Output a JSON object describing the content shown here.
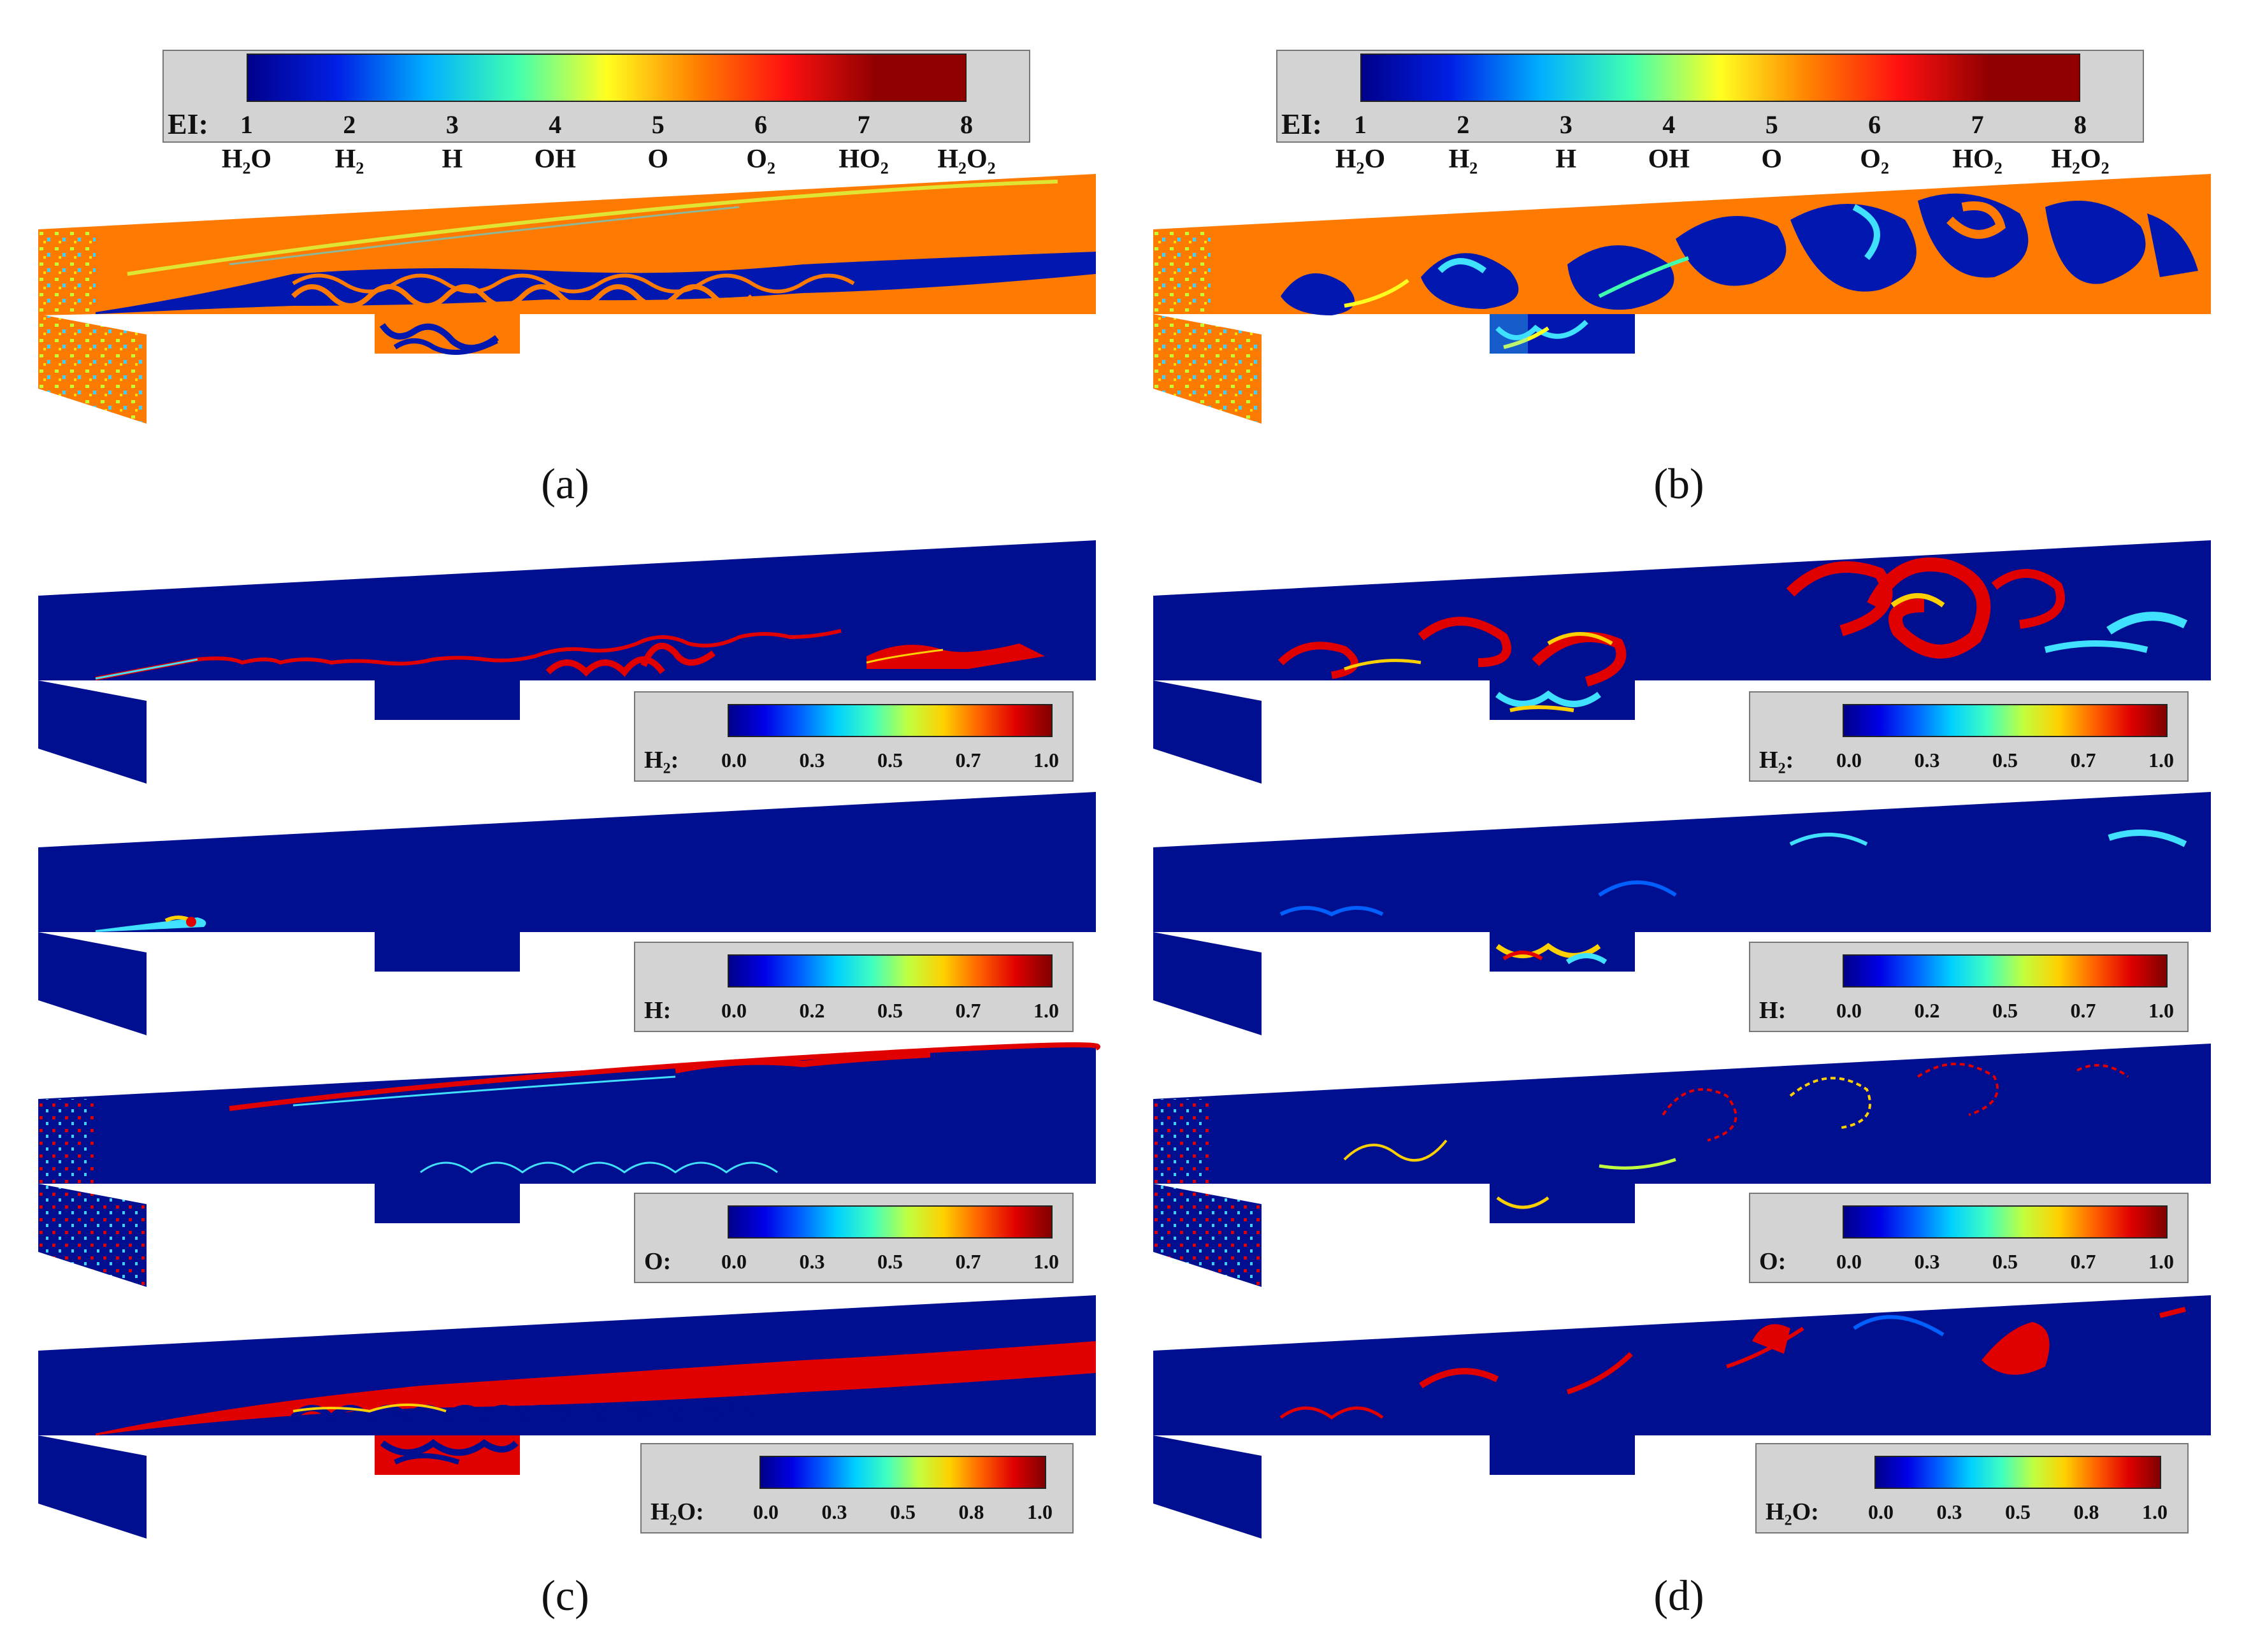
{
  "colors": {
    "domain_blue": "#000f8f",
    "orange": "#ff7a00",
    "jet": [
      "#00008a",
      "#0000e6",
      "#0060ff",
      "#00d0ff",
      "#40ffc0",
      "#c0ff40",
      "#ffd000",
      "#ff6000",
      "#e00000",
      "#800000"
    ],
    "ei": [
      "#00008a",
      "#0020e6",
      "#00b0ff",
      "#40ffb0",
      "#ffff20",
      "#ff8000",
      "#ff1010",
      "#900000"
    ]
  },
  "top_legend": {
    "label": "EI:",
    "ticks": [
      "1",
      "2",
      "3",
      "4",
      "5",
      "6",
      "7",
      "8"
    ],
    "species": [
      {
        "base": "H",
        "sub": "2",
        "tail": "O"
      },
      {
        "base": "H",
        "sub": "2",
        "tail": ""
      },
      {
        "base": "H",
        "sub": "",
        "tail": ""
      },
      {
        "base": "OH",
        "sub": "",
        "tail": ""
      },
      {
        "base": "O",
        "sub": "",
        "tail": ""
      },
      {
        "base": "O",
        "sub": "2",
        "tail": ""
      },
      {
        "base": "HO",
        "sub": "2",
        "tail": ""
      },
      {
        "base": "H",
        "sub": "2",
        "tail": "O",
        "sub2": "2"
      }
    ]
  },
  "captions": {
    "a": "(a)",
    "b": "(b)",
    "c": "(c)",
    "d": "(d)"
  },
  "small_legends": [
    {
      "key": "h2",
      "label_base": "H",
      "label_sub": "2",
      "label_tail": ":",
      "ticks": [
        "0.0",
        "0.3",
        "0.5",
        "0.7",
        "1.0"
      ]
    },
    {
      "key": "h",
      "label_base": "H",
      "label_sub": "",
      "label_tail": ":",
      "ticks": [
        "0.0",
        "0.2",
        "0.5",
        "0.7",
        "1.0"
      ]
    },
    {
      "key": "o",
      "label_base": "O",
      "label_sub": "",
      "label_tail": ":",
      "ticks": [
        "0.0",
        "0.3",
        "0.5",
        "0.7",
        "1.0"
      ]
    },
    {
      "key": "h2o",
      "label_base": "H",
      "label_sub": "2",
      "label_tail": "O:",
      "ticks": [
        "0.0",
        "0.3",
        "0.5",
        "0.8",
        "1.0"
      ]
    }
  ]
}
